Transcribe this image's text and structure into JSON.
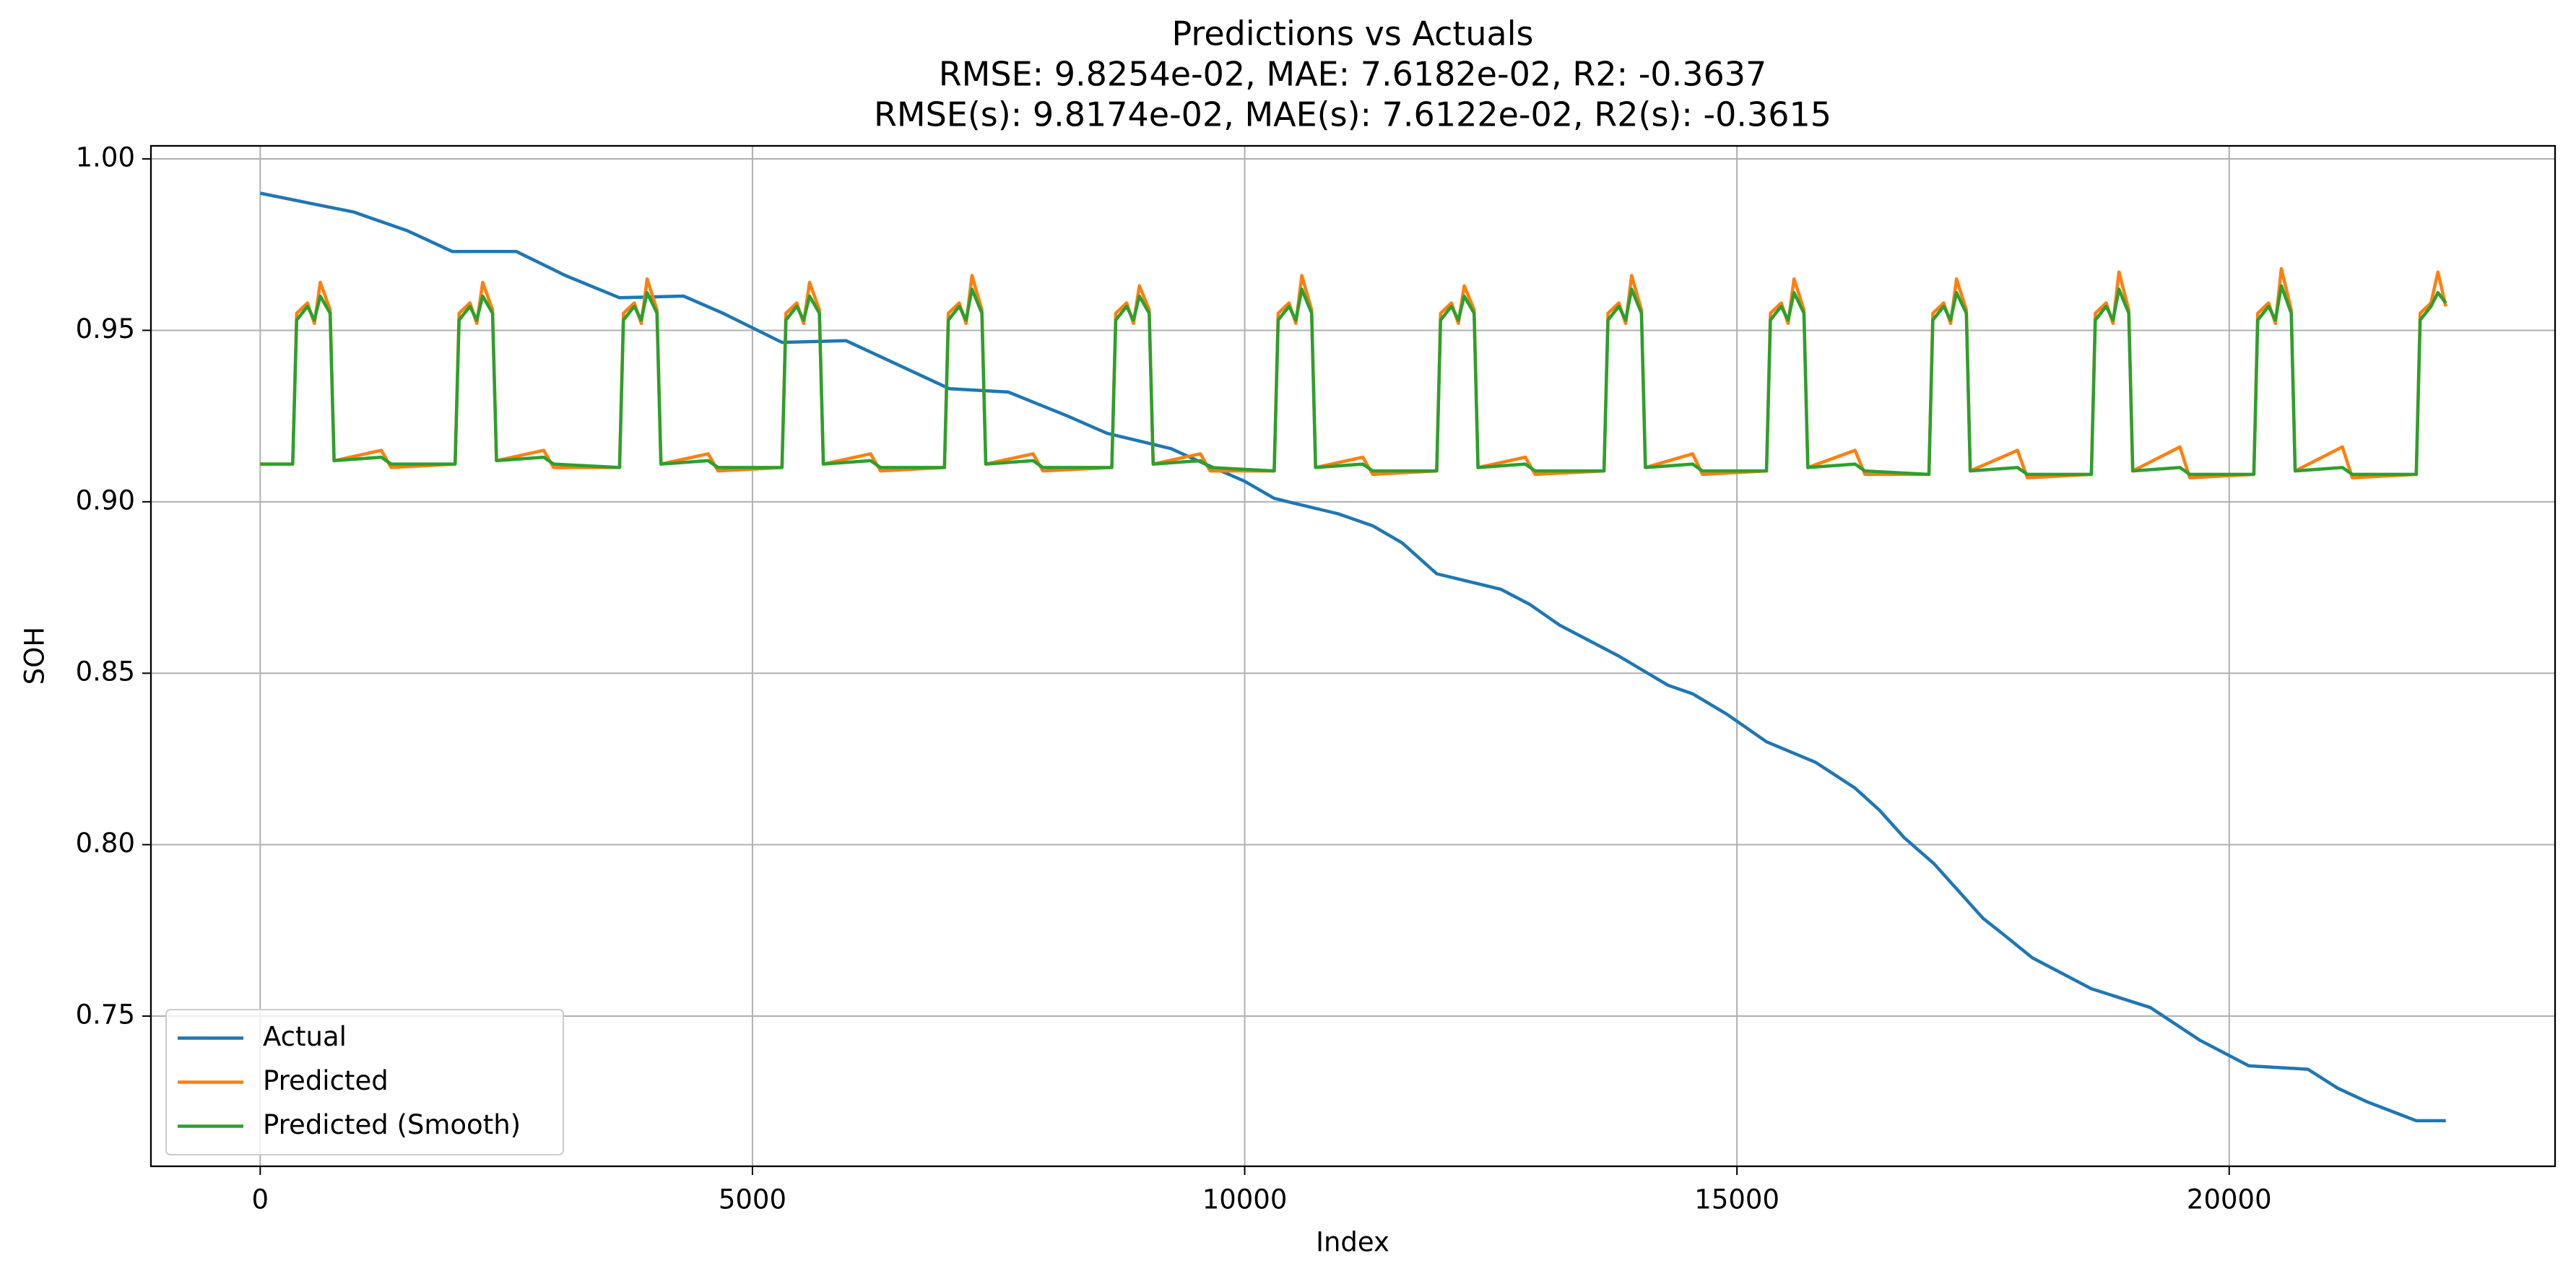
{
  "chart_data": {
    "type": "line",
    "title": "Predictions vs Actuals",
    "subtitle": [
      "RMSE: 9.8254e-02, MAE: 7.6182e-02, R2: -0.3637",
      "RMSE(s): 9.8174e-02, MAE(s): 7.6122e-02, R2(s): -0.3615"
    ],
    "xlabel": "Index",
    "ylabel": "SOH",
    "xlim": [
      -1110,
      23310
    ],
    "ylim": [
      0.7062,
      1.0038
    ],
    "xticks": [
      0,
      5000,
      10000,
      15000,
      20000
    ],
    "yticks": [
      0.75,
      {
        "value": 0.8,
        "label": "0.80"
      },
      0.85,
      {
        "value": 0.9,
        "label": "0.90"
      },
      0.95,
      {
        "value": 1.0,
        "label": "1.00"
      }
    ],
    "grid": true,
    "legend": "lower left",
    "series": [
      {
        "name": "Actual",
        "color": "#1f77b4",
        "x": [
          0,
          600,
          950,
          1500,
          1950,
          2600,
          3100,
          3650,
          4300,
          4700,
          5300,
          5950,
          6400,
          7000,
          7600,
          8200,
          8600,
          9250,
          9600,
          10000,
          10300,
          10950,
          11300,
          11600,
          11950,
          12600,
          12900,
          13200,
          13800,
          14300,
          14550,
          14900,
          15300,
          15800,
          16200,
          16450,
          16700,
          17000,
          17500,
          17700,
          18000,
          18600,
          19200,
          19700,
          20200,
          20800,
          21100,
          21400,
          21900,
          22200
        ],
        "values": [
          0.99,
          0.9865,
          0.9845,
          0.979,
          0.973,
          0.973,
          0.966,
          0.9595,
          0.96,
          0.955,
          0.9465,
          0.947,
          0.941,
          0.933,
          0.932,
          0.925,
          0.92,
          0.9155,
          0.911,
          0.906,
          0.901,
          0.8965,
          0.893,
          0.888,
          0.879,
          0.8745,
          0.87,
          0.864,
          0.855,
          0.8465,
          0.844,
          0.838,
          0.83,
          0.824,
          0.8165,
          0.81,
          0.802,
          0.7945,
          0.7785,
          0.774,
          0.767,
          0.758,
          0.7525,
          0.743,
          0.7355,
          0.7345,
          0.729,
          0.725,
          0.7195,
          0.7195
        ]
      },
      {
        "name": "Predicted",
        "color": "#ff7f0e",
        "x": [
          0,
          330,
          370,
          480,
          550,
          610,
          710,
          750,
          1230,
          1330,
          1980,
          2020,
          2130,
          2200,
          2260,
          2360,
          2400,
          2880,
          2980,
          3650,
          3690,
          3800,
          3870,
          3930,
          4030,
          4070,
          4550,
          4650,
          5300,
          5340,
          5450,
          5520,
          5580,
          5680,
          5720,
          6200,
          6300,
          6950,
          6990,
          7100,
          7170,
          7230,
          7330,
          7370,
          7850,
          7950,
          8650,
          8690,
          8800,
          8870,
          8930,
          9030,
          9070,
          9550,
          9650,
          10300,
          10340,
          10450,
          10520,
          10580,
          10680,
          10720,
          11200,
          11300,
          11950,
          11990,
          12100,
          12170,
          12230,
          12330,
          12370,
          12850,
          12950,
          13650,
          13690,
          13800,
          13870,
          13930,
          14030,
          14070,
          14550,
          14650,
          15300,
          15340,
          15450,
          15520,
          15580,
          15680,
          15720,
          16200,
          16300,
          16950,
          16990,
          17100,
          17170,
          17230,
          17330,
          17370,
          17850,
          17950,
          18600,
          18640,
          18750,
          18820,
          18880,
          18980,
          19020,
          19500,
          19600,
          20250,
          20290,
          20400,
          20470,
          20530,
          20630,
          20670,
          21150,
          21250,
          21900,
          21940,
          22050,
          22120,
          22200
        ],
        "values": [
          0.911,
          0.911,
          0.955,
          0.958,
          0.952,
          0.964,
          0.956,
          0.912,
          0.915,
          0.91,
          0.911,
          0.955,
          0.958,
          0.952,
          0.964,
          0.956,
          0.912,
          0.915,
          0.91,
          0.91,
          0.955,
          0.958,
          0.952,
          0.965,
          0.956,
          0.911,
          0.914,
          0.909,
          0.91,
          0.955,
          0.958,
          0.952,
          0.964,
          0.956,
          0.911,
          0.914,
          0.909,
          0.91,
          0.955,
          0.958,
          0.952,
          0.966,
          0.956,
          0.911,
          0.914,
          0.909,
          0.91,
          0.955,
          0.958,
          0.952,
          0.963,
          0.956,
          0.911,
          0.914,
          0.909,
          0.909,
          0.955,
          0.958,
          0.952,
          0.966,
          0.956,
          0.91,
          0.913,
          0.908,
          0.909,
          0.955,
          0.958,
          0.952,
          0.963,
          0.956,
          0.91,
          0.913,
          0.908,
          0.909,
          0.955,
          0.958,
          0.952,
          0.966,
          0.956,
          0.91,
          0.914,
          0.908,
          0.909,
          0.955,
          0.958,
          0.952,
          0.965,
          0.956,
          0.91,
          0.915,
          0.908,
          0.908,
          0.955,
          0.958,
          0.952,
          0.965,
          0.956,
          0.909,
          0.915,
          0.907,
          0.908,
          0.955,
          0.958,
          0.952,
          0.967,
          0.956,
          0.909,
          0.916,
          0.907,
          0.908,
          0.955,
          0.958,
          0.952,
          0.968,
          0.956,
          0.909,
          0.916,
          0.907,
          0.908,
          0.955,
          0.958,
          0.967,
          0.957
        ]
      },
      {
        "name": "Predicted (Smooth)",
        "color": "#2ca02c",
        "x": [
          0,
          330,
          370,
          480,
          550,
          610,
          710,
          750,
          1230,
          1330,
          1980,
          2020,
          2130,
          2200,
          2260,
          2360,
          2400,
          2880,
          2980,
          3650,
          3690,
          3800,
          3870,
          3930,
          4030,
          4070,
          4550,
          4650,
          5300,
          5340,
          5450,
          5520,
          5580,
          5680,
          5720,
          6200,
          6300,
          6950,
          6990,
          7100,
          7170,
          7230,
          7330,
          7370,
          7850,
          7950,
          8650,
          8690,
          8800,
          8870,
          8930,
          9030,
          9070,
          9550,
          9650,
          10300,
          10340,
          10450,
          10520,
          10580,
          10680,
          10720,
          11200,
          11300,
          11950,
          11990,
          12100,
          12170,
          12230,
          12330,
          12370,
          12850,
          12950,
          13650,
          13690,
          13800,
          13870,
          13930,
          14030,
          14070,
          14550,
          14650,
          15300,
          15340,
          15450,
          15520,
          15580,
          15680,
          15720,
          16200,
          16300,
          16950,
          16990,
          17100,
          17170,
          17230,
          17330,
          17370,
          17850,
          17950,
          18600,
          18640,
          18750,
          18820,
          18880,
          18980,
          19020,
          19500,
          19600,
          20250,
          20290,
          20400,
          20470,
          20530,
          20630,
          20670,
          21150,
          21250,
          21900,
          21940,
          22050,
          22120,
          22200
        ],
        "values": [
          0.911,
          0.911,
          0.953,
          0.957,
          0.953,
          0.96,
          0.955,
          0.912,
          0.913,
          0.911,
          0.911,
          0.953,
          0.957,
          0.953,
          0.96,
          0.955,
          0.912,
          0.913,
          0.911,
          0.91,
          0.953,
          0.957,
          0.953,
          0.961,
          0.955,
          0.911,
          0.912,
          0.91,
          0.91,
          0.953,
          0.957,
          0.953,
          0.96,
          0.955,
          0.911,
          0.912,
          0.91,
          0.91,
          0.953,
          0.957,
          0.953,
          0.962,
          0.955,
          0.911,
          0.912,
          0.91,
          0.91,
          0.953,
          0.957,
          0.953,
          0.96,
          0.955,
          0.911,
          0.912,
          0.91,
          0.909,
          0.953,
          0.957,
          0.953,
          0.962,
          0.955,
          0.91,
          0.911,
          0.909,
          0.909,
          0.953,
          0.957,
          0.953,
          0.96,
          0.955,
          0.91,
          0.911,
          0.909,
          0.909,
          0.953,
          0.957,
          0.953,
          0.962,
          0.955,
          0.91,
          0.911,
          0.909,
          0.909,
          0.953,
          0.957,
          0.953,
          0.961,
          0.955,
          0.91,
          0.911,
          0.909,
          0.908,
          0.953,
          0.957,
          0.953,
          0.961,
          0.955,
          0.909,
          0.91,
          0.908,
          0.908,
          0.953,
          0.957,
          0.953,
          0.962,
          0.955,
          0.909,
          0.91,
          0.908,
          0.908,
          0.953,
          0.957,
          0.953,
          0.963,
          0.955,
          0.909,
          0.91,
          0.908,
          0.908,
          0.953,
          0.957,
          0.961,
          0.958
        ]
      }
    ]
  }
}
